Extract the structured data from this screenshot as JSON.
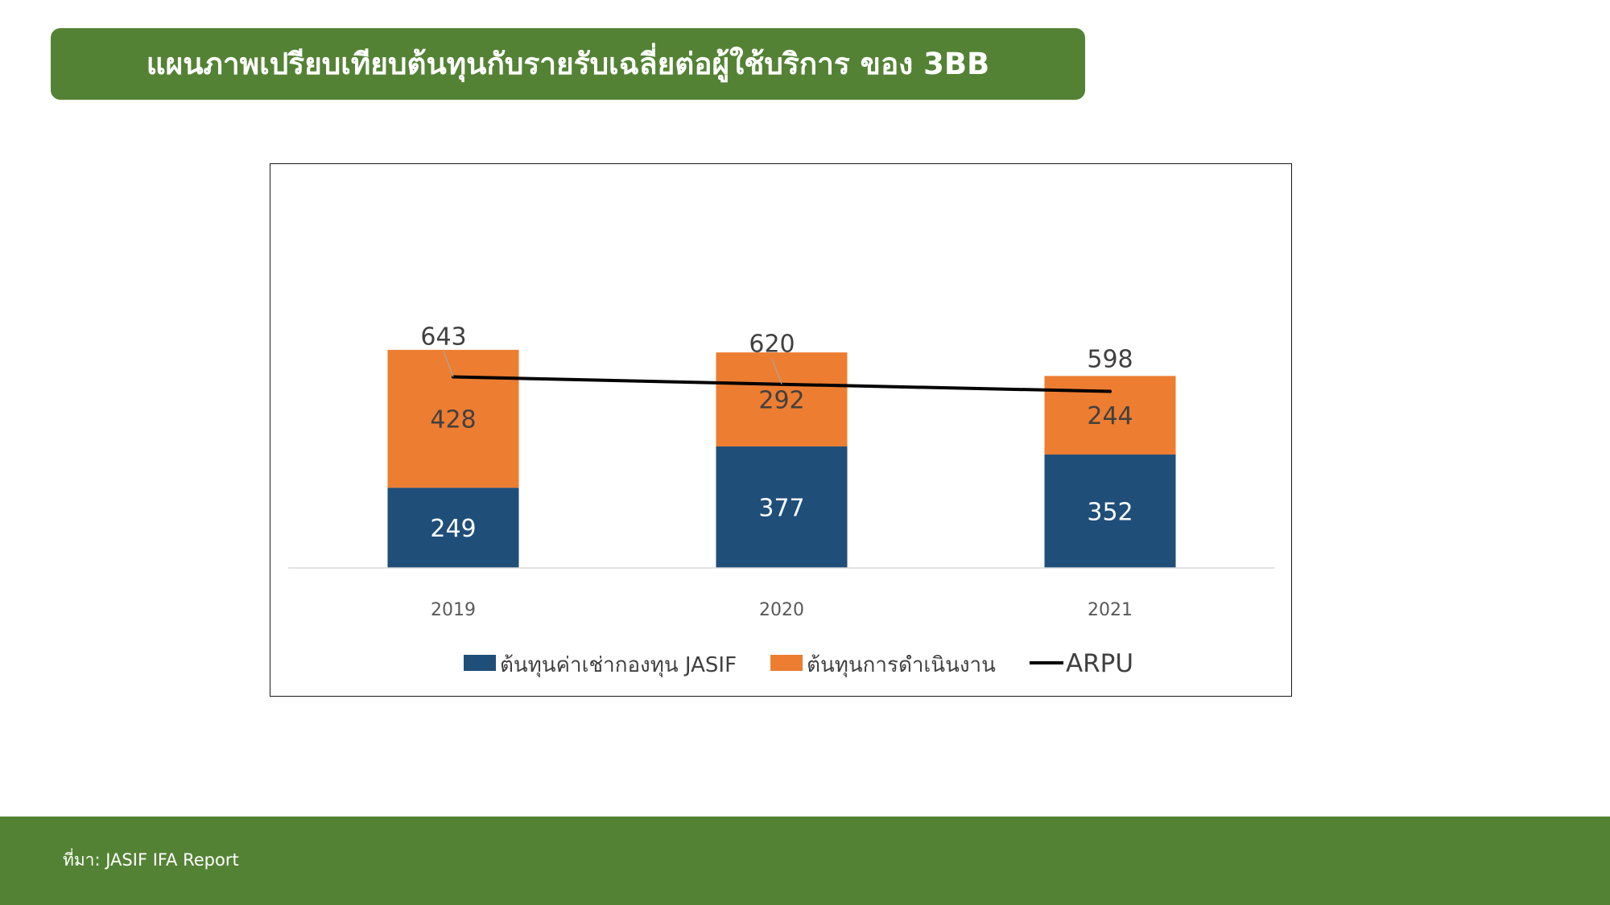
{
  "title": "แผนภาพเปรียบเทียบต้นทุนกับรายรับเฉลี่ยต่อผู้ใช้บริการ ของ 3BB",
  "source": "ที่มา: JASIF IFA Report",
  "colors": {
    "brand_green": "#548235",
    "lease_cost": "#1F4E79",
    "operating_cost": "#ED7D31",
    "arpu_line": "#000000"
  },
  "chart_data": {
    "type": "bar",
    "stacked": true,
    "categories": [
      "2019",
      "2020",
      "2021"
    ],
    "series": [
      {
        "name": "ต้นทุนค่าเช่ากองทุน JASIF",
        "kind": "bar",
        "color": "#1F4E79",
        "values": [
          249,
          377,
          352
        ]
      },
      {
        "name": "ต้นทุนการดำเนินงาน",
        "kind": "bar",
        "color": "#ED7D31",
        "values": [
          428,
          292,
          244
        ]
      },
      {
        "name": "ARPU",
        "kind": "line",
        "color": "#000000",
        "values": [
          643,
          620,
          598
        ]
      }
    ],
    "ylim": [
      0,
      680
    ],
    "y_axis_visible": false,
    "grid": false,
    "data_labels": true,
    "legend_position": "bottom"
  }
}
